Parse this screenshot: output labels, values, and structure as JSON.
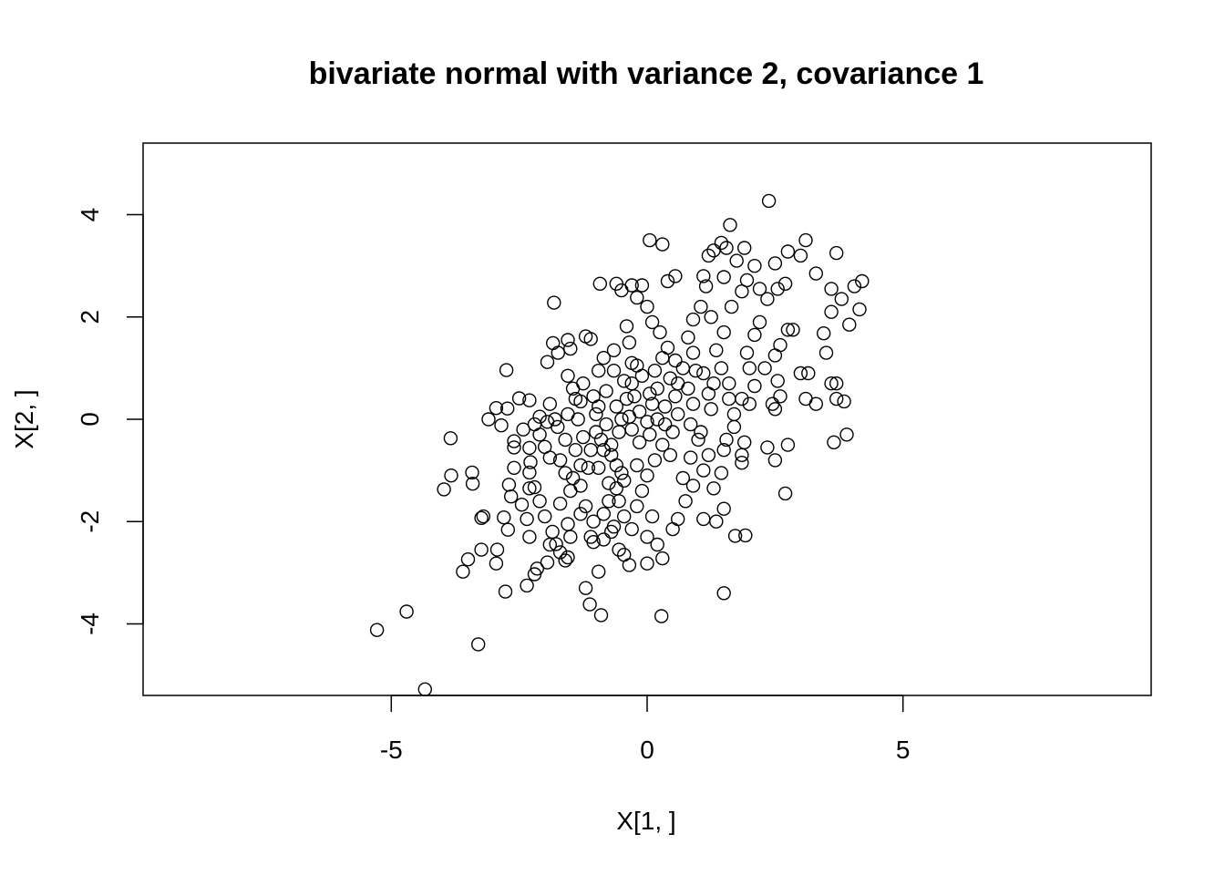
{
  "chart_data": {
    "type": "scatter",
    "title": "bivariate normal with variance 2, covariance 1",
    "xlabel": "X[1, ]",
    "ylabel": "X[2, ]",
    "xlim": [
      -9.85,
      9.85
    ],
    "ylim": [
      -5.4,
      5.4
    ],
    "xticks": [
      -5,
      0,
      5
    ],
    "xtick_labels": [
      "-5",
      "0",
      "5"
    ],
    "yticks": [
      -4,
      -2,
      0,
      2,
      4
    ],
    "ytick_labels": [
      "-4",
      "-2",
      "0",
      "2",
      "4"
    ],
    "marker": "open-circle",
    "series": [
      {
        "name": "X",
        "points": [
          [
            -5.28,
            -4.12
          ],
          [
            -4.7,
            -3.76
          ],
          [
            -4.34,
            -5.28
          ],
          [
            -3.3,
            -4.4
          ],
          [
            -3.84,
            -0.37
          ],
          [
            -3.83,
            -1.1
          ],
          [
            -3.97,
            -1.37
          ],
          [
            -3.42,
            -1.04
          ],
          [
            -3.41,
            -1.26
          ],
          [
            -3.24,
            -1.93
          ],
          [
            -3.2,
            -1.9
          ],
          [
            -3.24,
            -2.55
          ],
          [
            -3.6,
            -2.98
          ],
          [
            -3.5,
            -2.74
          ],
          [
            -2.95,
            -2.82
          ],
          [
            -2.93,
            -2.55
          ],
          [
            -2.77,
            -3.37
          ],
          [
            -2.72,
            -2.16
          ],
          [
            -2.8,
            -1.92
          ],
          [
            -2.66,
            -1.51
          ],
          [
            -2.7,
            -1.28
          ],
          [
            -2.75,
            0.96
          ],
          [
            -3.1,
            0.0
          ],
          [
            -2.95,
            0.22
          ],
          [
            -2.73,
            0.21
          ],
          [
            -2.6,
            -0.43
          ],
          [
            -2.3,
            -0.56
          ],
          [
            -2.85,
            -0.12
          ],
          [
            -2.42,
            -0.2
          ],
          [
            -2.2,
            -0.1
          ],
          [
            -2.5,
            0.41
          ],
          [
            -2.3,
            0.37
          ],
          [
            -2.1,
            0.05
          ],
          [
            -1.9,
            0.3
          ],
          [
            -1.8,
            0.0
          ],
          [
            -2.0,
            -0.54
          ],
          [
            -2.28,
            -0.84
          ],
          [
            -2.3,
            -1.04
          ],
          [
            -2.2,
            -1.33
          ],
          [
            -2.45,
            -1.67
          ],
          [
            -2.35,
            -1.95
          ],
          [
            -2.3,
            -2.3
          ],
          [
            -2.35,
            -3.25
          ],
          [
            -2.15,
            -2.92
          ],
          [
            -2.2,
            -3.03
          ],
          [
            -1.95,
            -2.8
          ],
          [
            -1.9,
            -2.45
          ],
          [
            -1.85,
            -2.2
          ],
          [
            -1.78,
            -2.44
          ],
          [
            -1.6,
            -2.76
          ],
          [
            -1.55,
            -2.7
          ],
          [
            -1.55,
            -2.05
          ],
          [
            -1.7,
            -1.65
          ],
          [
            -1.5,
            -1.4
          ],
          [
            -1.6,
            -1.05
          ],
          [
            -1.7,
            -0.8
          ],
          [
            -1.9,
            -0.75
          ],
          [
            -1.95,
            1.12
          ],
          [
            -1.84,
            1.49
          ],
          [
            -1.82,
            2.28
          ],
          [
            -1.74,
            1.3
          ],
          [
            -1.55,
            0.85
          ],
          [
            -1.45,
            0.6
          ],
          [
            -1.5,
            1.38
          ],
          [
            -1.55,
            1.55
          ],
          [
            -1.2,
            1.62
          ],
          [
            -1.1,
            1.57
          ],
          [
            -1.3,
            0.35
          ],
          [
            -1.35,
            0.0
          ],
          [
            -1.25,
            -0.35
          ],
          [
            -1.1,
            -0.6
          ],
          [
            -1.15,
            -0.95
          ],
          [
            -1.3,
            -1.3
          ],
          [
            -1.2,
            -1.7
          ],
          [
            -1.05,
            -2.0
          ],
          [
            -1.1,
            -2.3
          ],
          [
            -1.05,
            -2.4
          ],
          [
            -0.95,
            -2.98
          ],
          [
            -1.2,
            -3.3
          ],
          [
            -1.12,
            -3.62
          ],
          [
            -0.9,
            -3.83
          ],
          [
            -0.55,
            -2.55
          ],
          [
            -0.45,
            -2.65
          ],
          [
            -0.35,
            -2.85
          ],
          [
            -0.7,
            -2.2
          ],
          [
            -0.85,
            -2.35
          ],
          [
            -0.75,
            -1.6
          ],
          [
            -0.6,
            -1.35
          ],
          [
            -0.5,
            -1.05
          ],
          [
            -0.7,
            -0.7
          ],
          [
            -0.9,
            -0.4
          ],
          [
            -0.8,
            -0.1
          ],
          [
            -0.95,
            0.25
          ],
          [
            -0.8,
            0.55
          ],
          [
            -0.95,
            0.95
          ],
          [
            -0.85,
            1.2
          ],
          [
            -0.65,
            1.35
          ],
          [
            -0.92,
            2.65
          ],
          [
            -0.6,
            2.65
          ],
          [
            -0.5,
            2.52
          ],
          [
            -0.3,
            2.62
          ],
          [
            -0.2,
            2.38
          ],
          [
            -0.1,
            2.62
          ],
          [
            0.0,
            2.2
          ],
          [
            0.05,
            3.5
          ],
          [
            0.3,
            3.42
          ],
          [
            0.4,
            2.7
          ],
          [
            0.55,
            2.8
          ],
          [
            0.1,
            1.9
          ],
          [
            0.25,
            1.7
          ],
          [
            0.4,
            1.4
          ],
          [
            -0.4,
            1.82
          ],
          [
            -0.35,
            1.5
          ],
          [
            -0.2,
            1.05
          ],
          [
            -0.3,
            0.7
          ],
          [
            -0.4,
            0.4
          ],
          [
            -0.15,
            0.15
          ],
          [
            0.0,
            -0.05
          ],
          [
            0.1,
            0.3
          ],
          [
            0.2,
            0.6
          ],
          [
            0.15,
            0.95
          ],
          [
            0.3,
            1.2
          ],
          [
            0.45,
            0.8
          ],
          [
            0.55,
            0.45
          ],
          [
            0.6,
            0.1
          ],
          [
            0.5,
            -0.25
          ],
          [
            0.3,
            -0.5
          ],
          [
            0.15,
            -0.8
          ],
          [
            0.0,
            -1.1
          ],
          [
            -0.1,
            -1.4
          ],
          [
            -0.2,
            -1.7
          ],
          [
            0.1,
            -1.9
          ],
          [
            0.0,
            -2.3
          ],
          [
            0.2,
            -2.45
          ],
          [
            0.3,
            -2.72
          ],
          [
            0.0,
            -2.82
          ],
          [
            0.28,
            -3.85
          ],
          [
            0.5,
            -2.15
          ],
          [
            0.6,
            -1.95
          ],
          [
            0.75,
            -1.6
          ],
          [
            0.9,
            -1.3
          ],
          [
            1.1,
            -1.0
          ],
          [
            1.2,
            -0.7
          ],
          [
            1.0,
            -0.4
          ],
          [
            0.85,
            -0.1
          ],
          [
            0.9,
            0.3
          ],
          [
            0.8,
            0.6
          ],
          [
            0.95,
            0.95
          ],
          [
            0.9,
            1.3
          ],
          [
            0.8,
            1.6
          ],
          [
            0.9,
            1.95
          ],
          [
            1.05,
            2.2
          ],
          [
            1.15,
            2.6
          ],
          [
            1.1,
            2.8
          ],
          [
            1.2,
            3.2
          ],
          [
            1.3,
            3.3
          ],
          [
            1.45,
            3.45
          ],
          [
            1.55,
            3.35
          ],
          [
            1.5,
            2.78
          ],
          [
            1.62,
            3.8
          ],
          [
            1.75,
            3.1
          ],
          [
            1.9,
            3.35
          ],
          [
            1.95,
            2.72
          ],
          [
            2.1,
            3.0
          ],
          [
            2.2,
            2.55
          ],
          [
            2.38,
            4.27
          ],
          [
            2.5,
            3.05
          ],
          [
            2.55,
            2.55
          ],
          [
            2.7,
            2.65
          ],
          [
            2.75,
            3.28
          ],
          [
            3.0,
            3.2
          ],
          [
            3.1,
            3.5
          ],
          [
            3.3,
            2.85
          ],
          [
            3.6,
            2.55
          ],
          [
            3.7,
            3.25
          ],
          [
            3.8,
            2.35
          ],
          [
            3.95,
            1.85
          ],
          [
            4.05,
            2.6
          ],
          [
            4.15,
            2.15
          ],
          [
            4.2,
            2.7
          ],
          [
            3.6,
            2.1
          ],
          [
            3.5,
            1.3
          ],
          [
            3.45,
            1.68
          ],
          [
            3.3,
            0.3
          ],
          [
            3.1,
            0.4
          ],
          [
            3.0,
            0.9
          ],
          [
            3.15,
            0.9
          ],
          [
            2.75,
            1.75
          ],
          [
            2.85,
            1.75
          ],
          [
            2.6,
            1.45
          ],
          [
            2.5,
            1.25
          ],
          [
            2.6,
            0.45
          ],
          [
            2.45,
            0.3
          ],
          [
            2.5,
            0.2
          ],
          [
            2.35,
            -0.55
          ],
          [
            2.5,
            -0.8
          ],
          [
            2.75,
            -0.5
          ],
          [
            2.7,
            -1.45
          ],
          [
            3.6,
            0.7
          ],
          [
            3.7,
            0.7
          ],
          [
            3.65,
            -0.45
          ],
          [
            3.7,
            0.4
          ],
          [
            3.85,
            0.35
          ],
          [
            3.9,
            -0.3
          ],
          [
            1.95,
            1.3
          ],
          [
            2.0,
            1.0
          ],
          [
            2.1,
            0.65
          ],
          [
            1.85,
            0.4
          ],
          [
            1.7,
            0.1
          ],
          [
            1.9,
            -0.45
          ],
          [
            1.85,
            -0.7
          ],
          [
            1.85,
            -0.85
          ],
          [
            1.5,
            -0.6
          ],
          [
            1.45,
            -1.05
          ],
          [
            1.3,
            -1.35
          ],
          [
            1.35,
            -2.0
          ],
          [
            1.1,
            -1.95
          ],
          [
            1.5,
            -1.75
          ],
          [
            1.5,
            -3.4
          ],
          [
            1.72,
            -2.28
          ],
          [
            1.92,
            -2.27
          ],
          [
            1.6,
            0.7
          ],
          [
            1.45,
            1.0
          ],
          [
            1.35,
            1.35
          ],
          [
            1.5,
            1.7
          ],
          [
            1.25,
            2.0
          ],
          [
            1.65,
            2.2
          ],
          [
            1.85,
            2.5
          ],
          [
            2.2,
            1.9
          ],
          [
            2.35,
            2.35
          ],
          [
            2.1,
            1.65
          ],
          [
            2.3,
            1.0
          ],
          [
            2.55,
            0.75
          ],
          [
            2.0,
            0.3
          ],
          [
            -0.5,
            0.0
          ],
          [
            -0.6,
            0.25
          ],
          [
            -0.3,
            -0.2
          ],
          [
            -0.15,
            -0.45
          ],
          [
            0.05,
            -0.3
          ],
          [
            0.35,
            -0.1
          ],
          [
            0.6,
            0.7
          ],
          [
            0.7,
            1.0
          ],
          [
            0.55,
            1.15
          ],
          [
            0.35,
            0.25
          ],
          [
            0.2,
            0.0
          ],
          [
            0.45,
            -0.7
          ],
          [
            0.7,
            -1.15
          ],
          [
            0.85,
            -0.75
          ],
          [
            1.05,
            -0.25
          ],
          [
            1.25,
            0.2
          ],
          [
            1.2,
            0.5
          ],
          [
            1.1,
            0.9
          ],
          [
            1.3,
            0.7
          ],
          [
            1.6,
            0.4
          ],
          [
            1.7,
            -0.15
          ],
          [
            1.55,
            -0.4
          ],
          [
            -0.2,
            -0.9
          ],
          [
            -0.45,
            -1.2
          ],
          [
            -0.6,
            -0.9
          ],
          [
            -0.7,
            -0.5
          ],
          [
            -0.55,
            -0.25
          ],
          [
            -0.35,
            0.05
          ],
          [
            -0.25,
            0.45
          ],
          [
            -0.45,
            0.75
          ],
          [
            -0.65,
            0.95
          ],
          [
            -0.3,
            1.1
          ],
          [
            -0.1,
            0.85
          ],
          [
            0.05,
            0.5
          ],
          [
            -1.4,
            -0.6
          ],
          [
            -1.3,
            -0.9
          ],
          [
            -1.45,
            -1.15
          ],
          [
            -1.6,
            -0.4
          ],
          [
            -1.75,
            -0.15
          ],
          [
            -1.55,
            0.1
          ],
          [
            -1.4,
            0.4
          ],
          [
            -1.25,
            0.7
          ],
          [
            -1.05,
            0.45
          ],
          [
            -1.0,
            0.1
          ],
          [
            -1.0,
            -0.25
          ],
          [
            -0.85,
            -0.6
          ],
          [
            -0.95,
            -0.95
          ],
          [
            -0.75,
            -1.25
          ],
          [
            -0.55,
            -1.6
          ],
          [
            -0.45,
            -1.9
          ],
          [
            -0.3,
            -2.15
          ],
          [
            -0.65,
            -2.1
          ],
          [
            -0.85,
            -1.85
          ],
          [
            -1.3,
            -1.85
          ],
          [
            -1.5,
            -2.3
          ],
          [
            -1.7,
            -2.6
          ],
          [
            -2.0,
            -1.9
          ],
          [
            -2.1,
            -1.6
          ],
          [
            -2.3,
            -1.35
          ],
          [
            -2.6,
            -0.95
          ],
          [
            -2.6,
            -0.55
          ],
          [
            -2.1,
            -0.3
          ],
          [
            -1.95,
            -0.05
          ]
        ]
      }
    ]
  }
}
